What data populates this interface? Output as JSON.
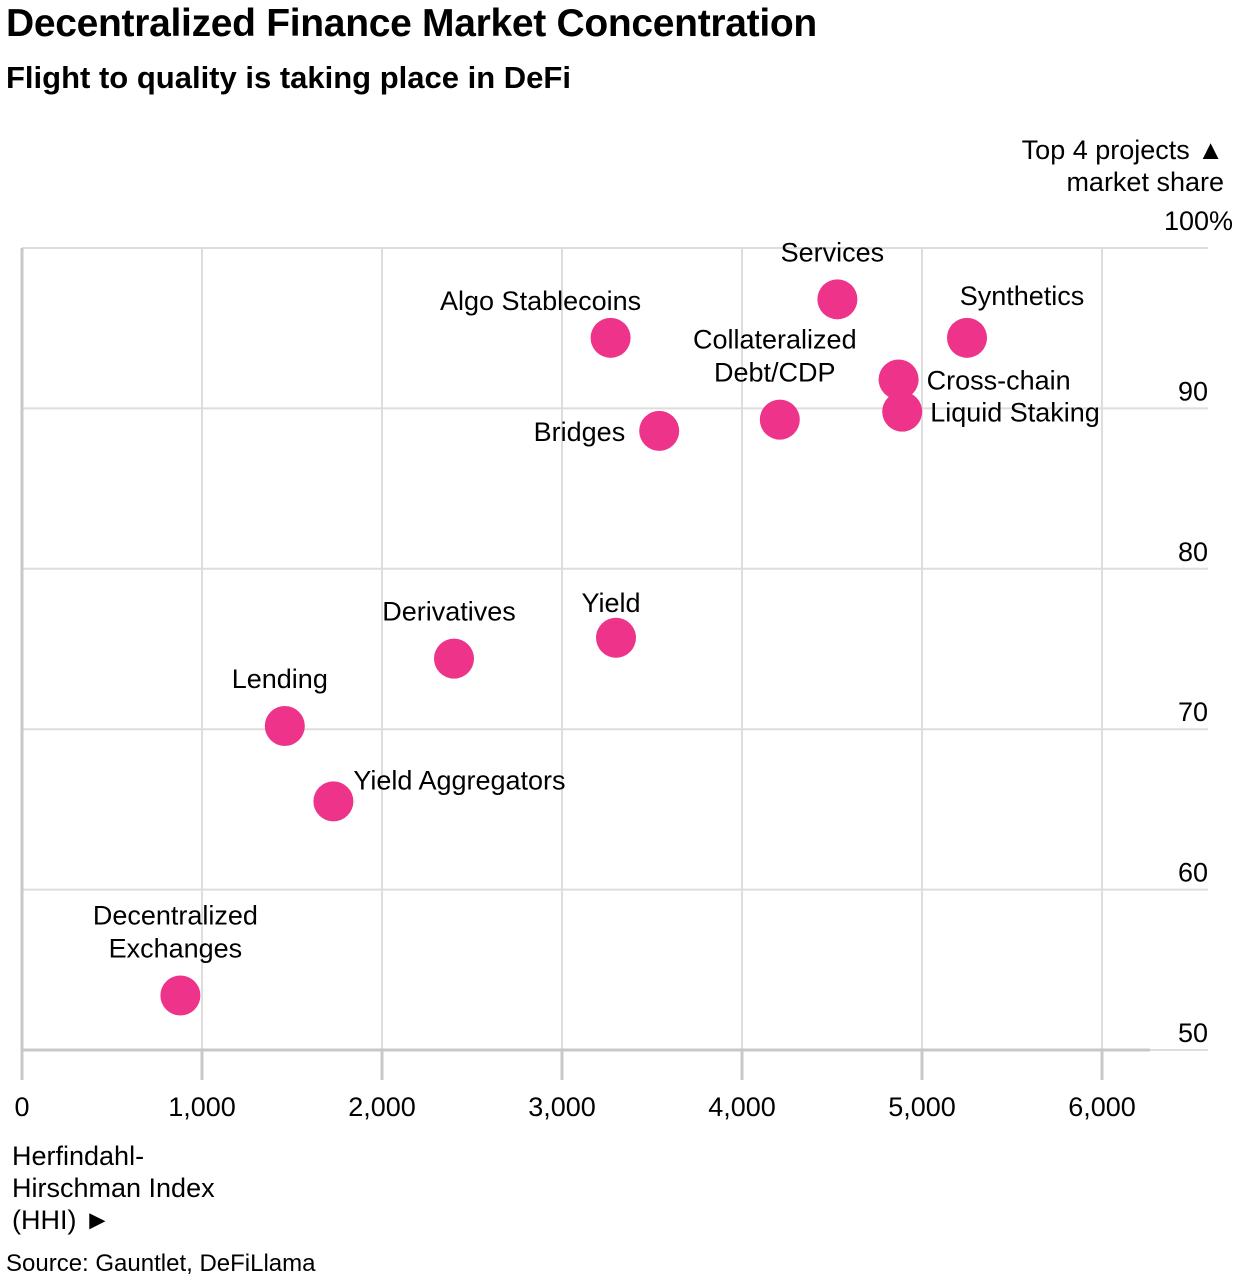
{
  "chart_data": {
    "type": "scatter",
    "title": "Decentralized Finance Market Concentration",
    "subtitle": "Flight to quality is taking place in DeFi",
    "ylabel_lines": [
      "Top 4 projects ▲",
      "market share"
    ],
    "xlabel_lines": [
      "Herfindahl-",
      "Hirschman Index",
      "(HHI) ►"
    ],
    "source": "Source: Gauntlet, DeFiLlama",
    "xlim": [
      0,
      6600
    ],
    "ylim": [
      50,
      100
    ],
    "x_ticks": [
      {
        "value": 0,
        "label": "0"
      },
      {
        "value": 1000,
        "label": "1,000"
      },
      {
        "value": 2000,
        "label": "2,000"
      },
      {
        "value": 3000,
        "label": "3,000"
      },
      {
        "value": 4000,
        "label": "4,000"
      },
      {
        "value": 5000,
        "label": "5,000"
      },
      {
        "value": 6000,
        "label": "6,000"
      }
    ],
    "y_ticks": [
      {
        "value": 100,
        "label": "100%"
      },
      {
        "value": 90,
        "label": "90"
      },
      {
        "value": 80,
        "label": "80"
      },
      {
        "value": 70,
        "label": "70"
      },
      {
        "value": 60,
        "label": "60"
      },
      {
        "value": 50,
        "label": "50"
      }
    ],
    "point_color": "#ee338a",
    "points": [
      {
        "name": "Services",
        "lines": [
          "Services"
        ],
        "x": 4530,
        "y": 96.8,
        "pos": "above"
      },
      {
        "name": "Synthetics",
        "lines": [
          "Synthetics"
        ],
        "x": 5250,
        "y": 94.4,
        "pos": "above-right"
      },
      {
        "name": "Algo Stablecoins",
        "lines": [
          "Algo Stablecoins"
        ],
        "x": 3270,
        "y": 94.4,
        "pos": "above-left"
      },
      {
        "name": "Cross-chain",
        "lines": [
          "Cross-chain"
        ],
        "x": 4870,
        "y": 91.8,
        "pos": "right"
      },
      {
        "name": "Collateralized Debt/CDP",
        "lines": [
          "Collateralized",
          "Debt/CDP"
        ],
        "x": 4210,
        "y": 89.3,
        "pos": "above"
      },
      {
        "name": "Liquid Staking",
        "lines": [
          "Liquid Staking"
        ],
        "x": 4890,
        "y": 89.8,
        "pos": "right"
      },
      {
        "name": "Bridges",
        "lines": [
          "Bridges"
        ],
        "x": 3540,
        "y": 88.6,
        "pos": "left"
      },
      {
        "name": "Yield",
        "lines": [
          "Yield"
        ],
        "x": 3300,
        "y": 75.7,
        "pos": "above-small"
      },
      {
        "name": "Derivatives",
        "lines": [
          "Derivatives"
        ],
        "x": 2400,
        "y": 74.4,
        "pos": "above"
      },
      {
        "name": "Lending",
        "lines": [
          "Lending"
        ],
        "x": 1460,
        "y": 70.2,
        "pos": "above"
      },
      {
        "name": "Yield Aggregators",
        "lines": [
          "Yield Aggregators"
        ],
        "x": 1730,
        "y": 65.5,
        "pos": "above-right"
      },
      {
        "name": "Decentralized Exchanges",
        "lines": [
          "Decentralized",
          "Exchanges"
        ],
        "x": 880,
        "y": 53.4,
        "pos": "above"
      }
    ]
  }
}
